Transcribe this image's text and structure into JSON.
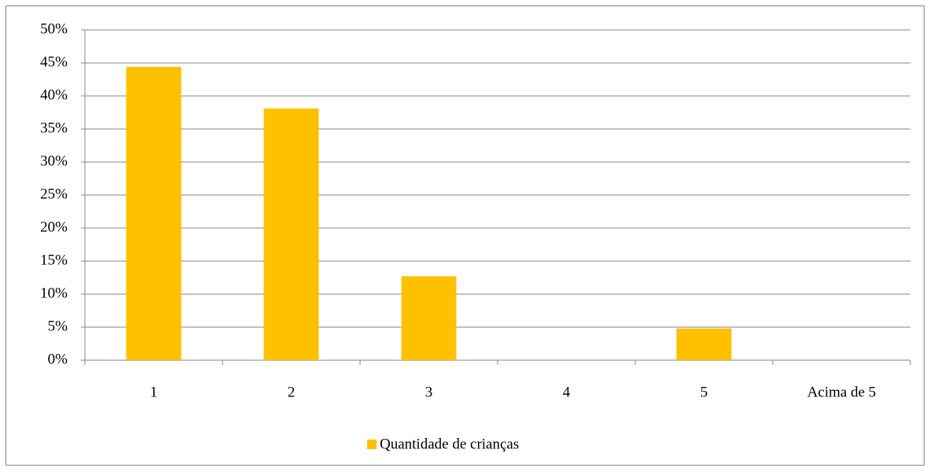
{
  "chart_data": {
    "type": "bar",
    "categories": [
      "1",
      "2",
      "3",
      "4",
      "5",
      "Acima de 5"
    ],
    "series": [
      {
        "name": "Quantidade de crianças",
        "color": "#ffc000",
        "values": [
          44.4,
          38.1,
          12.7,
          0,
          4.8,
          0
        ]
      }
    ],
    "ylim": [
      0,
      50
    ],
    "yticks": [
      {
        "value": 0,
        "label": "0%"
      },
      {
        "value": 5,
        "label": "5%"
      },
      {
        "value": 10,
        "label": "10%"
      },
      {
        "value": 15,
        "label": "15%"
      },
      {
        "value": 20,
        "label": "20%"
      },
      {
        "value": 25,
        "label": "25%"
      },
      {
        "value": 30,
        "label": "30%"
      },
      {
        "value": 35,
        "label": "35%"
      },
      {
        "value": 40,
        "label": "40%"
      },
      {
        "value": 45,
        "label": "45%"
      },
      {
        "value": 50,
        "label": "50%"
      }
    ],
    "grid": true,
    "legend": "bottom"
  }
}
